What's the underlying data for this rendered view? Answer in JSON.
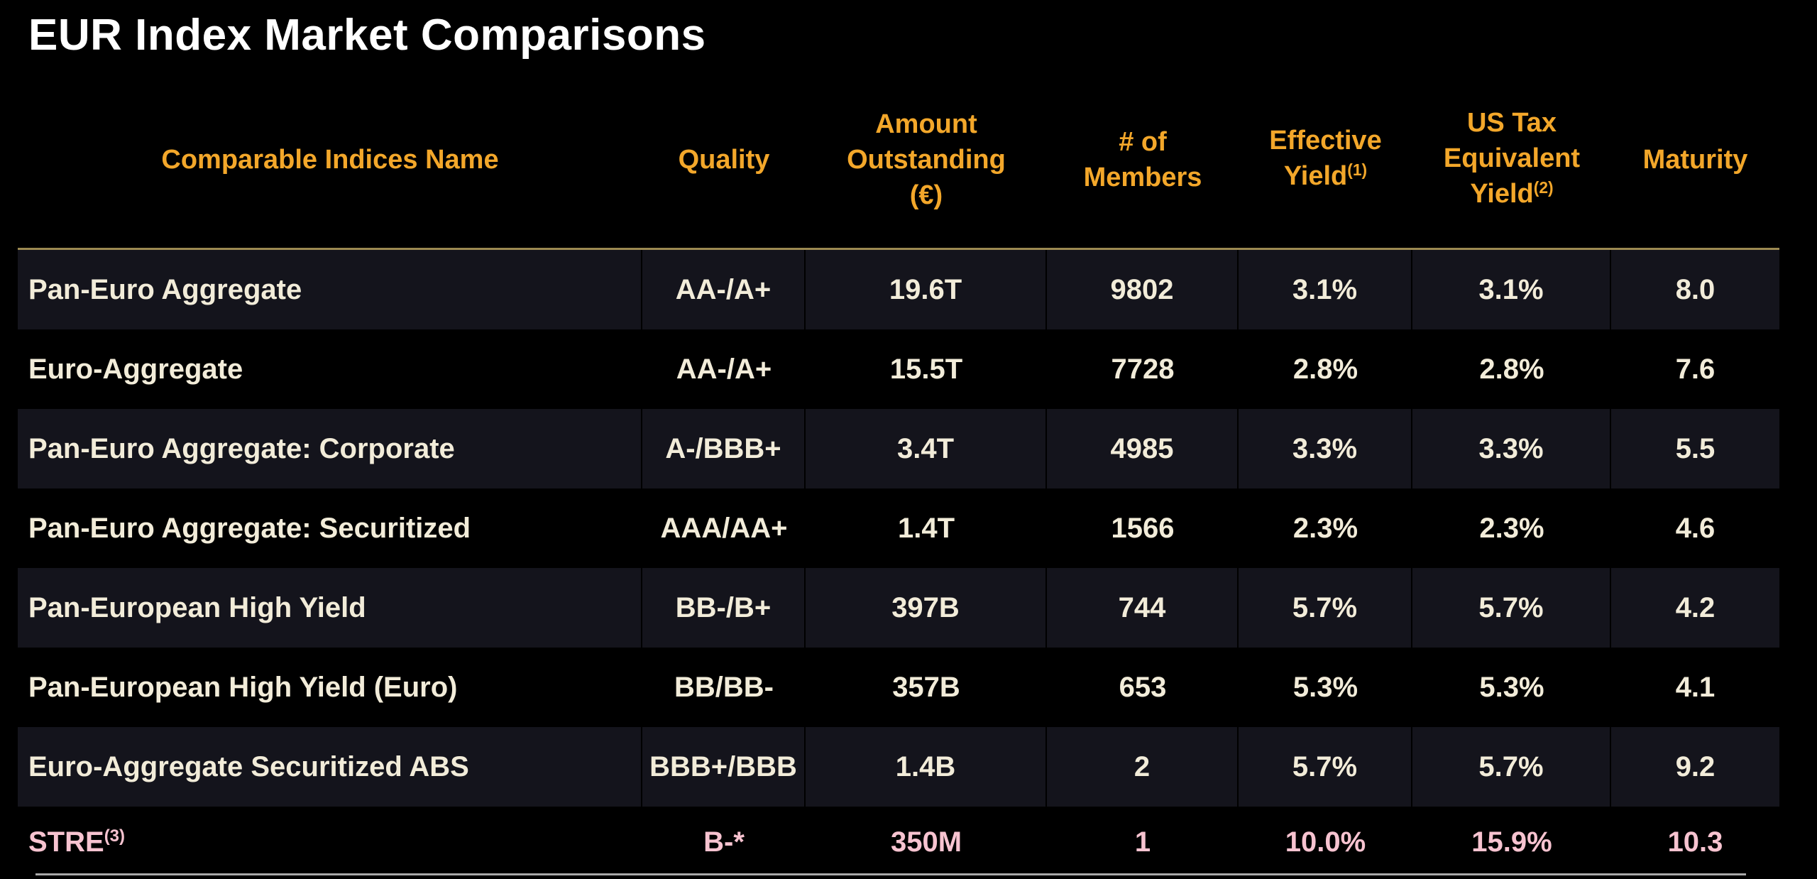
{
  "title": "EUR Index Market Comparisons",
  "colors": {
    "background": "#000000",
    "title_text": "#FFFFFF",
    "header_text": "#F3A72A",
    "row_text": "#F2ECD9",
    "highlight_row_text": "#F7C3D0",
    "header_rule": "#9C8A52",
    "row_stripe": "#14141C",
    "bottom_rule": "#A8A8A8"
  },
  "table": {
    "columns": [
      {
        "key": "name",
        "align": "left",
        "header_lines": [
          {
            "text": "Comparable Indices Name"
          }
        ]
      },
      {
        "key": "quality",
        "header_lines": [
          {
            "text": "Quality"
          }
        ]
      },
      {
        "key": "amount_outstanding",
        "header_lines": [
          {
            "text": "Amount"
          },
          {
            "text": "Outstanding"
          },
          {
            "text": "(€)"
          }
        ]
      },
      {
        "key": "members",
        "header_lines": [
          {
            "text": "# of"
          },
          {
            "text": "Members"
          }
        ]
      },
      {
        "key": "effective_yield",
        "header_lines": [
          {
            "text": "Effective"
          },
          {
            "text": "Yield",
            "sup": "(1)"
          }
        ]
      },
      {
        "key": "us_tax_equivalent_yield",
        "header_lines": [
          {
            "text": "US Tax"
          },
          {
            "text": "Equivalent"
          },
          {
            "text": "Yield",
            "sup": "(2)"
          }
        ]
      },
      {
        "key": "maturity",
        "header_lines": [
          {
            "text": "Maturity"
          }
        ]
      }
    ],
    "rows": [
      {
        "name": "Pan-Euro Aggregate",
        "quality": "AA-/A+",
        "amount_outstanding": "19.6T",
        "members": "9802",
        "effective_yield": "3.1%",
        "us_tax_equivalent_yield": "3.1%",
        "maturity": "8.0",
        "highlight": false
      },
      {
        "name": "Euro-Aggregate",
        "quality": "AA-/A+",
        "amount_outstanding": "15.5T",
        "members": "7728",
        "effective_yield": "2.8%",
        "us_tax_equivalent_yield": "2.8%",
        "maturity": "7.6",
        "highlight": false
      },
      {
        "name": "Pan-Euro Aggregate: Corporate",
        "quality": "A-/BBB+",
        "amount_outstanding": "3.4T",
        "members": "4985",
        "effective_yield": "3.3%",
        "us_tax_equivalent_yield": "3.3%",
        "maturity": "5.5",
        "highlight": false
      },
      {
        "name": "Pan-Euro Aggregate: Securitized",
        "quality": "AAA/AA+",
        "amount_outstanding": "1.4T",
        "members": "1566",
        "effective_yield": "2.3%",
        "us_tax_equivalent_yield": "2.3%",
        "maturity": "4.6",
        "highlight": false
      },
      {
        "name": "Pan-European High Yield",
        "quality": "BB-/B+",
        "amount_outstanding": "397B",
        "members": "744",
        "effective_yield": "5.7%",
        "us_tax_equivalent_yield": "5.7%",
        "maturity": "4.2",
        "highlight": false
      },
      {
        "name": "Pan-European High Yield (Euro)",
        "quality": "BB/BB-",
        "amount_outstanding": "357B",
        "members": "653",
        "effective_yield": "5.3%",
        "us_tax_equivalent_yield": "5.3%",
        "maturity": "4.1",
        "highlight": false
      },
      {
        "name": "Euro-Aggregate Securitized ABS",
        "quality": "BBB+/BBB",
        "amount_outstanding": "1.4B",
        "members": "2",
        "effective_yield": "5.7%",
        "us_tax_equivalent_yield": "5.7%",
        "maturity": "9.2",
        "highlight": false
      },
      {
        "name": "STRE",
        "name_sup": "(3)",
        "quality": "B-*",
        "amount_outstanding": "350M",
        "members": "1",
        "effective_yield": "10.0%",
        "us_tax_equivalent_yield": "15.9%",
        "maturity": "10.3",
        "highlight": true
      }
    ]
  }
}
